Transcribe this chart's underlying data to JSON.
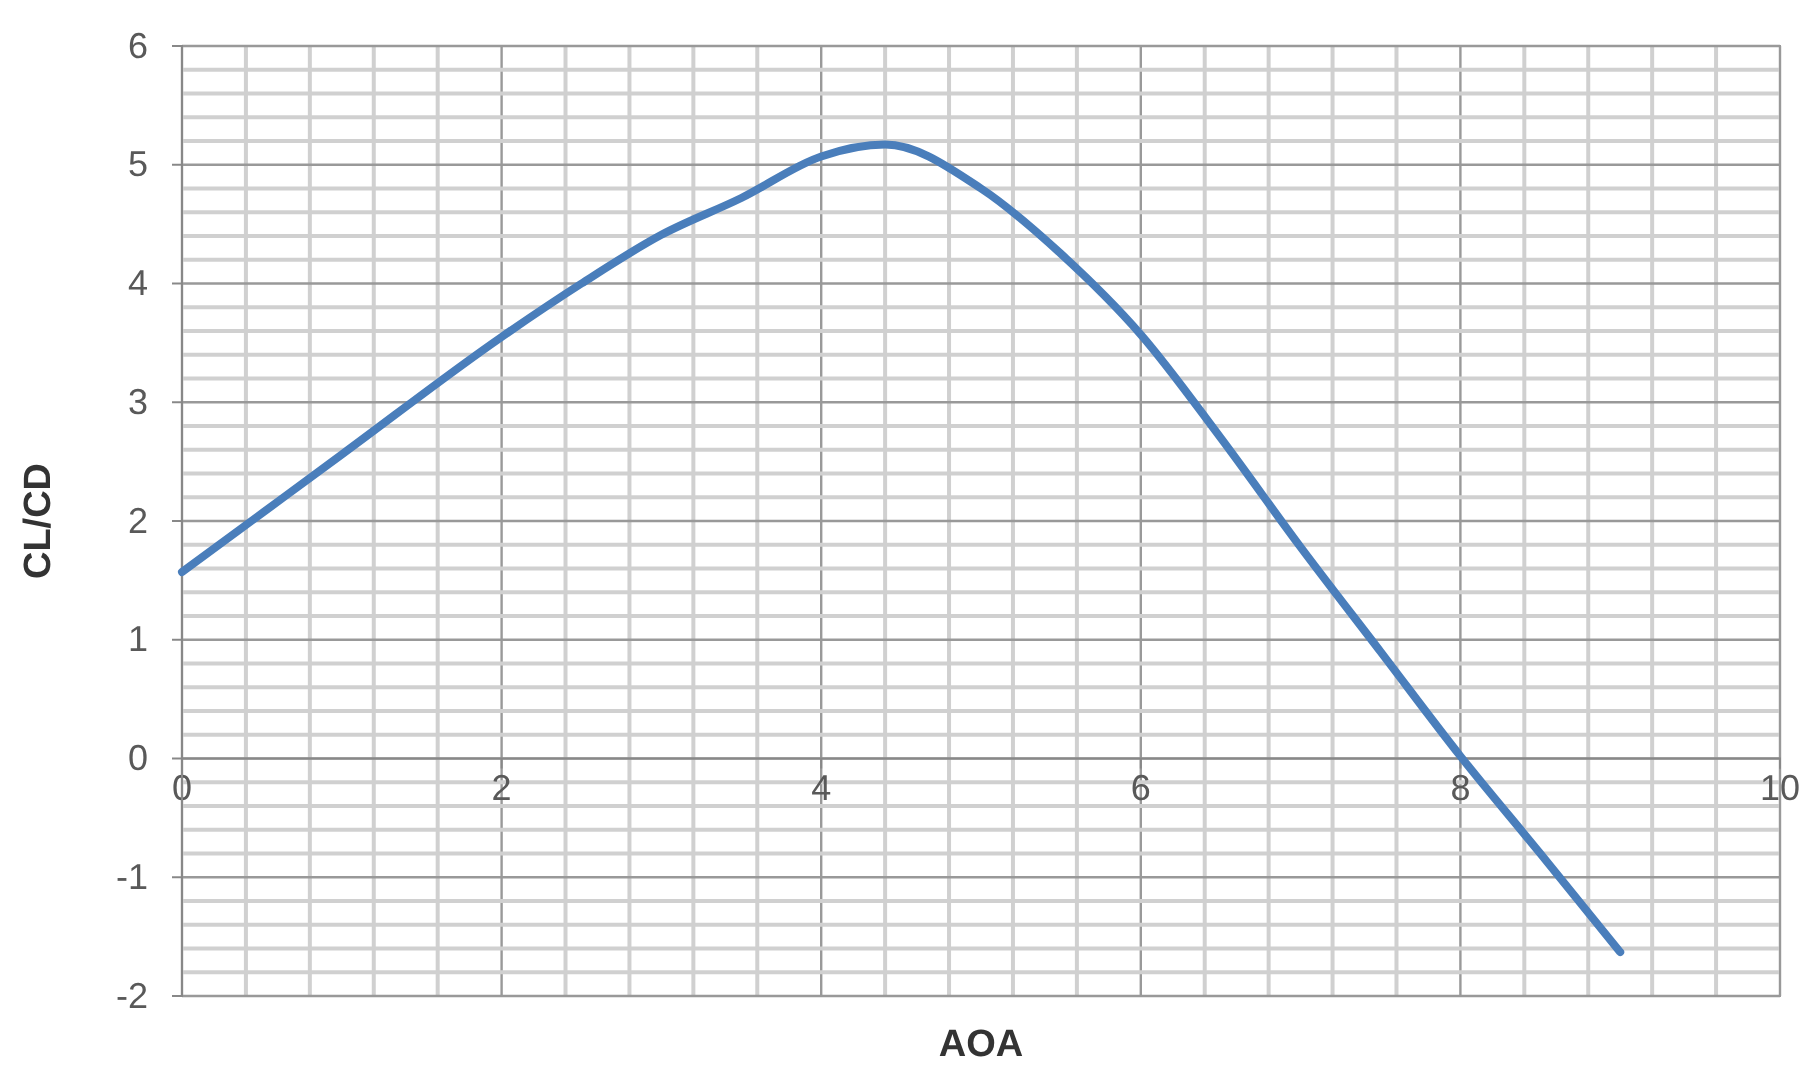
{
  "chart_data": {
    "type": "line",
    "xlabel": "AOA",
    "ylabel": "CL/CD",
    "x": [
      0,
      1,
      2,
      2.5,
      3,
      3.5,
      4,
      4.4,
      5,
      5.5,
      6,
      6.5,
      7,
      7.5,
      8,
      8.5,
      9
    ],
    "series": [
      {
        "color": "#4a7ebb",
        "values": [
          1.57,
          2.56,
          3.55,
          4.0,
          4.41,
          4.72,
          5.07,
          5.17,
          4.8,
          4.25,
          3.57,
          2.7,
          1.78,
          0.9,
          0.02,
          -0.8,
          -1.63
        ]
      }
    ],
    "xlim": [
      0,
      10
    ],
    "xticks": [
      0,
      2,
      4,
      6,
      8,
      10
    ],
    "ylim": [
      -2,
      6
    ],
    "yticks": [
      -2,
      -1,
      0,
      1,
      2,
      3,
      4,
      5,
      6
    ],
    "grid": true,
    "marker": "none",
    "line_style": "solid"
  }
}
